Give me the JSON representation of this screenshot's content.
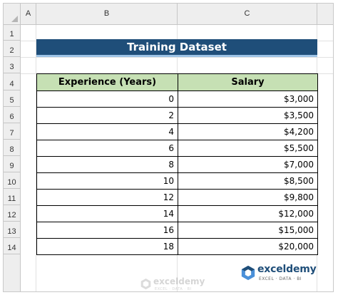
{
  "columns": [
    "A",
    "B",
    "C"
  ],
  "rows": [
    "1",
    "2",
    "3",
    "4",
    "5",
    "6",
    "7",
    "8",
    "9",
    "10",
    "11",
    "12",
    "13",
    "14"
  ],
  "title": "Training Dataset",
  "table": {
    "headers": [
      "Experience (Years)",
      "Salary"
    ],
    "rows": [
      {
        "experience": "0",
        "salary": "$3,000"
      },
      {
        "experience": "2",
        "salary": "$3,500"
      },
      {
        "experience": "4",
        "salary": "$4,200"
      },
      {
        "experience": "6",
        "salary": "$5,500"
      },
      {
        "experience": "8",
        "salary": "$7,000"
      },
      {
        "experience": "10",
        "salary": "$8,500"
      },
      {
        "experience": "12",
        "salary": "$9,800"
      },
      {
        "experience": "14",
        "salary": "$12,000"
      },
      {
        "experience": "16",
        "salary": "$15,000"
      },
      {
        "experience": "18",
        "salary": "$20,000"
      }
    ]
  },
  "logo": {
    "name": "exceldemy",
    "tagline": "EXCEL · DATA · BI",
    "icon": "exceldemy-logo-icon"
  },
  "watermark": {
    "name": "exceldemy",
    "tagline": "EXCEL · DATA · BI"
  },
  "colors": {
    "banner": "#1f4e79",
    "header_fill": "#c6e0b4",
    "logo_primary": "#1f4e79",
    "logo_accent": "#4a90d9"
  }
}
